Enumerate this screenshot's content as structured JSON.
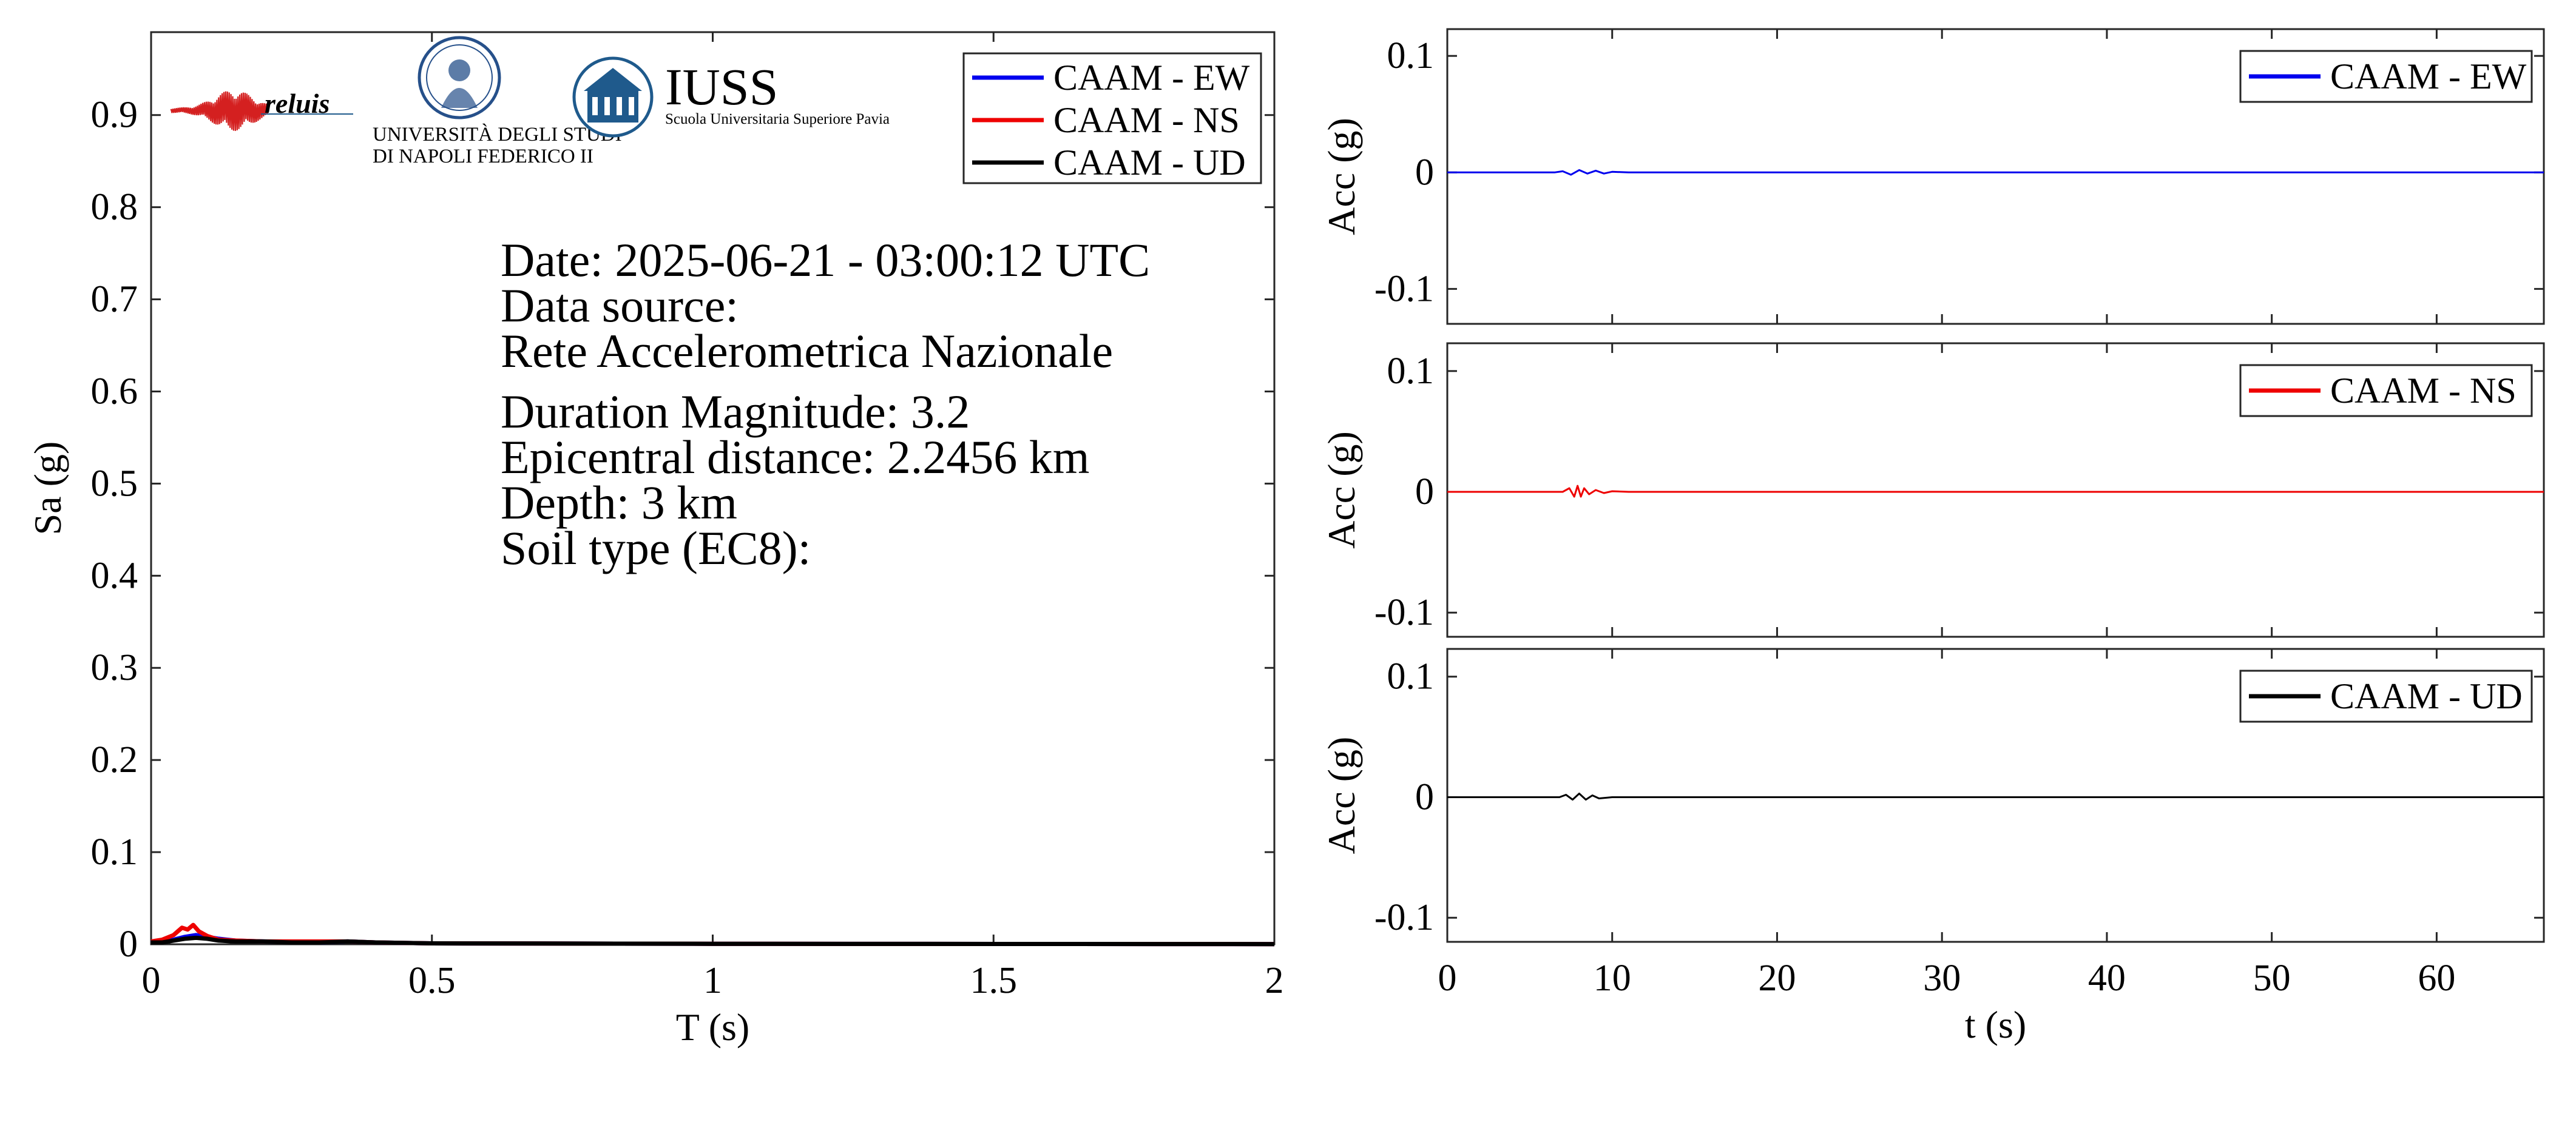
{
  "colors": {
    "ew": "#0000ee",
    "ns": "#ee0000",
    "ud": "#000000",
    "logo_blue": "#1f5a8c",
    "logo_red": "#d42020",
    "seal": "#26508a"
  },
  "logos": {
    "reluis": "reluis",
    "unina_line1": "UNIVERSITÀ DEGLI STUDI",
    "unina_line2": "DI NAPOLI FEDERICO II",
    "iuss": "IUSS",
    "iuss_sub": "Scuola Universitaria Superiore Pavia"
  },
  "info": {
    "date": "Date: 2025-06-21 - 03:00:12 UTC",
    "source_label": "Data source:",
    "source": "Rete Accelerometrica Nazionale",
    "magnitude": "Duration Magnitude: 3.2",
    "distance": "Epicentral distance: 2.2456 km",
    "depth": "Depth: 3 km",
    "soil": "Soil type (EC8):"
  },
  "chart_data": [
    {
      "type": "line",
      "xlabel": "T (s)",
      "ylabel": "Sa (g)",
      "xlim": [
        0,
        2
      ],
      "ylim": [
        0,
        0.99
      ],
      "xticks": [
        0,
        0.5,
        1,
        1.5,
        2
      ],
      "xtick_labels": [
        "0",
        "0.5",
        "1",
        "1.5",
        "2"
      ],
      "yticks": [
        0,
        0.1,
        0.2,
        0.3,
        0.4,
        0.5,
        0.6,
        0.7,
        0.8,
        0.9
      ],
      "ytick_labels": [
        "0",
        "0.1",
        "0.2",
        "0.3",
        "0.4",
        "0.5",
        "0.6",
        "0.7",
        "0.8",
        "0.9"
      ],
      "legend": "top-right",
      "grid": false,
      "series": [
        {
          "name": "CAAM - EW",
          "color": "#0000ee",
          "x": [
            0,
            0.02,
            0.04,
            0.06,
            0.08,
            0.1,
            0.12,
            0.15,
            0.2,
            0.3,
            0.35,
            0.4,
            0.5,
            1,
            2
          ],
          "y": [
            0.002,
            0.003,
            0.005,
            0.008,
            0.01,
            0.008,
            0.006,
            0.004,
            0.003,
            0.002,
            0.003,
            0.002,
            0.001,
            0.0005,
            0.0002
          ]
        },
        {
          "name": "CAAM - NS",
          "color": "#ee0000",
          "x": [
            0,
            0.02,
            0.04,
            0.055,
            0.065,
            0.075,
            0.085,
            0.1,
            0.12,
            0.15,
            0.2,
            0.3,
            0.35,
            0.4,
            0.5,
            1,
            2
          ],
          "y": [
            0.003,
            0.005,
            0.01,
            0.018,
            0.016,
            0.021,
            0.014,
            0.009,
            0.005,
            0.004,
            0.003,
            0.003,
            0.003,
            0.002,
            0.001,
            0.0005,
            0.0002
          ]
        },
        {
          "name": "CAAM - UD",
          "color": "#000000",
          "x": [
            0,
            0.02,
            0.04,
            0.06,
            0.08,
            0.1,
            0.12,
            0.15,
            0.2,
            0.25,
            0.3,
            0.35,
            0.4,
            0.5,
            1,
            2
          ],
          "y": [
            0.002,
            0.002,
            0.004,
            0.006,
            0.007,
            0.006,
            0.004,
            0.003,
            0.003,
            0.002,
            0.002,
            0.003,
            0.002,
            0.001,
            0.0005,
            0.0002
          ]
        }
      ]
    },
    {
      "type": "line",
      "xlabel": "",
      "ylabel": "Acc (g)",
      "xlim": [
        0,
        66.5
      ],
      "ylim": [
        -0.13,
        0.123
      ],
      "yticks": [
        -0.1,
        0,
        0.1
      ],
      "ytick_labels": [
        "-0.1",
        "0",
        "0.1"
      ],
      "xticks": [
        0,
        10,
        20,
        30,
        40,
        50,
        60
      ],
      "legend": "top-right",
      "grid": false,
      "series": [
        {
          "name": "CAAM - EW",
          "color": "#0000ee",
          "x": [
            0,
            6.5,
            7,
            7.5,
            8,
            8.5,
            9,
            9.5,
            10,
            11,
            66.5
          ],
          "y": [
            0,
            0,
            0.001,
            -0.002,
            0.002,
            -0.001,
            0.0015,
            -0.001,
            0.0005,
            0,
            0
          ]
        }
      ]
    },
    {
      "type": "line",
      "xlabel": "",
      "ylabel": "Acc (g)",
      "xlim": [
        0,
        66.5
      ],
      "ylim": [
        -0.12,
        0.123
      ],
      "yticks": [
        -0.1,
        0,
        0.1
      ],
      "ytick_labels": [
        "-0.1",
        "0",
        "0.1"
      ],
      "xticks": [
        0,
        10,
        20,
        30,
        40,
        50,
        60
      ],
      "legend": "top-right",
      "grid": false,
      "series": [
        {
          "name": "CAAM - NS",
          "color": "#ee0000",
          "x": [
            0,
            7,
            7.4,
            7.7,
            7.9,
            8.1,
            8.3,
            8.6,
            9,
            9.5,
            10,
            11,
            66.5
          ],
          "y": [
            0,
            0,
            0.003,
            -0.004,
            0.005,
            -0.004,
            0.003,
            -0.002,
            0.0015,
            -0.001,
            0.0005,
            0,
            0
          ]
        }
      ]
    },
    {
      "type": "line",
      "xlabel": "t (s)",
      "ylabel": "Acc (g)",
      "xlim": [
        0,
        66.5
      ],
      "ylim": [
        -0.12,
        0.123
      ],
      "yticks": [
        -0.1,
        0,
        0.1
      ],
      "ytick_labels": [
        "-0.1",
        "0",
        "0.1"
      ],
      "xticks": [
        0,
        10,
        20,
        30,
        40,
        50,
        60
      ],
      "xtick_labels": [
        "0",
        "10",
        "20",
        "30",
        "40",
        "50",
        "60"
      ],
      "legend": "top-right",
      "grid": false,
      "series": [
        {
          "name": "CAAM - UD",
          "color": "#000000",
          "x": [
            0,
            6.8,
            7.2,
            7.6,
            8,
            8.4,
            8.8,
            9.2,
            10,
            66.5
          ],
          "y": [
            0,
            0,
            0.002,
            -0.002,
            0.003,
            -0.002,
            0.0015,
            -0.001,
            0,
            0
          ]
        }
      ]
    }
  ]
}
